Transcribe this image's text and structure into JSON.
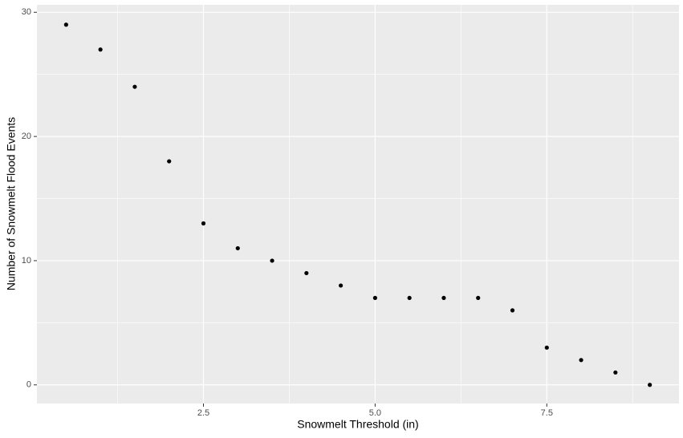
{
  "chart_data": {
    "type": "scatter",
    "x_label": "Snowmelt Threshold (in)",
    "y_label": "Number of Snowmelt Flood Events",
    "x": [
      0.5,
      1,
      1.5,
      2,
      2.5,
      3,
      3.5,
      4,
      4.5,
      5,
      5.5,
      6,
      6.5,
      7,
      7.5,
      8,
      8.5,
      9
    ],
    "values": [
      29,
      27,
      24,
      18,
      13,
      11,
      10,
      9,
      8,
      7,
      7,
      7,
      7,
      6,
      3,
      2,
      1,
      0
    ],
    "color": "#000000",
    "xlim": [
      0.075,
      9.425
    ],
    "ylim": [
      -1.5,
      30.6
    ],
    "xticks": [
      2.5,
      {
        "value": 5,
        "label": "5.0"
      },
      7.5
    ],
    "yticks": [
      0,
      10,
      20,
      30
    ],
    "x_minor_grid": [
      1.25,
      3.75,
      6.25,
      8.75
    ],
    "y_minor_grid": [
      5,
      15,
      25
    ],
    "grid": true
  }
}
